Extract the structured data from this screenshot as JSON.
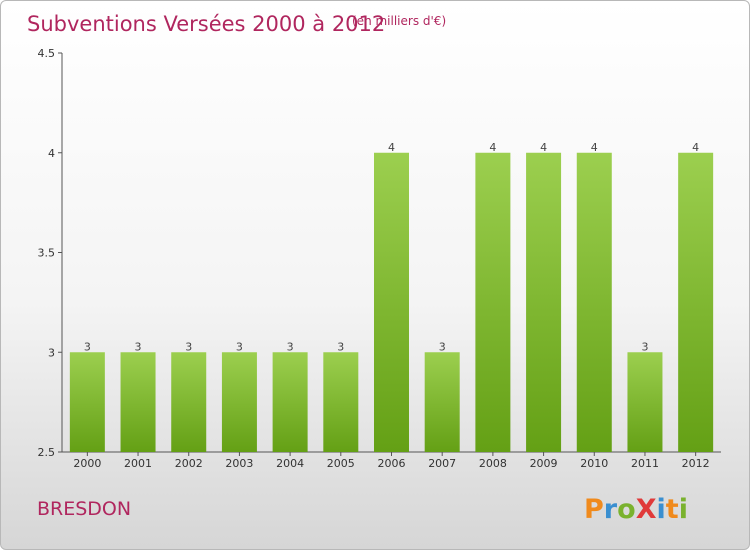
{
  "chart_data": {
    "type": "bar",
    "title": "Subventions Versées 2000 à 2012",
    "subtitle": "(en milliers d'€)",
    "categories": [
      "2000",
      "2001",
      "2002",
      "2003",
      "2004",
      "2005",
      "2006",
      "2007",
      "2008",
      "2009",
      "2010",
      "2011",
      "2012"
    ],
    "values": [
      3,
      3,
      3,
      3,
      3,
      3,
      4,
      3,
      4,
      4,
      4,
      3,
      4
    ],
    "ylim": [
      2.5,
      4.5
    ],
    "yticks": [
      "2.5",
      "3",
      "3.5",
      "4",
      "4.5"
    ],
    "bar_color": "#7fb830",
    "title_color": "#b0265e"
  },
  "place_name": "BRESDON",
  "logo": {
    "text": "ProXiti",
    "letter_colors": [
      "#f08a1c",
      "#3a8fd0",
      "#7ab22e",
      "#e03a3a",
      "#3a8fd0",
      "#f08a1c",
      "#7ab22e"
    ]
  }
}
